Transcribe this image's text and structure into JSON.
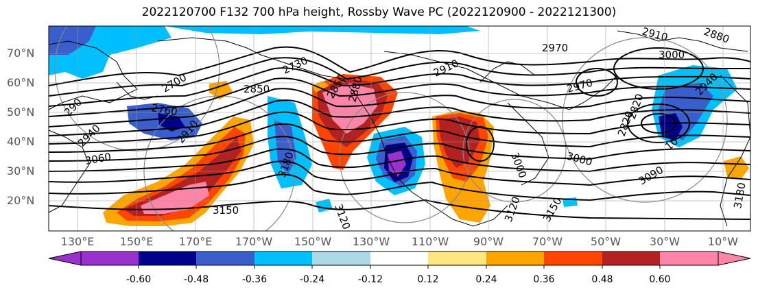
{
  "title": "2022120700 F132 700 hPa height, Rossby Wave PC (2022120900 - 2022121300)",
  "map": {
    "variable": "700 hPa height",
    "overlay": "Rossby Wave PC",
    "lat_labels": [
      "70°N",
      "60°N",
      "50°N",
      "40°N",
      "30°N",
      "20°N"
    ],
    "lon_labels": [
      "130°E",
      "150°E",
      "170°E",
      "170°W",
      "150°W",
      "130°W",
      "110°W",
      "90°W",
      "70°W",
      "50°W",
      "30°W",
      "10°W"
    ],
    "contour_labels": [
      "2700",
      "2730",
      "2850",
      "2760",
      "2910",
      "2970",
      "3000",
      "2910",
      "2880",
      "3000",
      "2970",
      "2940",
      "3060",
      "3150",
      "3120",
      "3180",
      "3000",
      "3090",
      "2820",
      "2940",
      "3150",
      "3120",
      "2910",
      "2850",
      "290",
      "2820",
      "10",
      "3180",
      "2880"
    ],
    "colors": {
      "purple": "#9932cc",
      "navy": "#00008b",
      "blue": "#3a5fcd",
      "deepsky": "#00bfff",
      "lightblue": "#add8e6",
      "yellow": "#ffe680",
      "orange": "#ffa500",
      "redorange": "#ff4500",
      "firebrick": "#b22222",
      "pink": "#ff85a8"
    }
  },
  "colorbar": {
    "labels": [
      "-0.60",
      "-0.48",
      "-0.36",
      "-0.24",
      "-0.12",
      "0.12",
      "0.24",
      "0.36",
      "0.48",
      "0.60"
    ],
    "colors": [
      "#9932cc",
      "#00008b",
      "#3a5fcd",
      "#00bfff",
      "#add8e6",
      "#ffffff",
      "#ffe680",
      "#ffa500",
      "#ff4500",
      "#b22222",
      "#ff85a8"
    ]
  }
}
